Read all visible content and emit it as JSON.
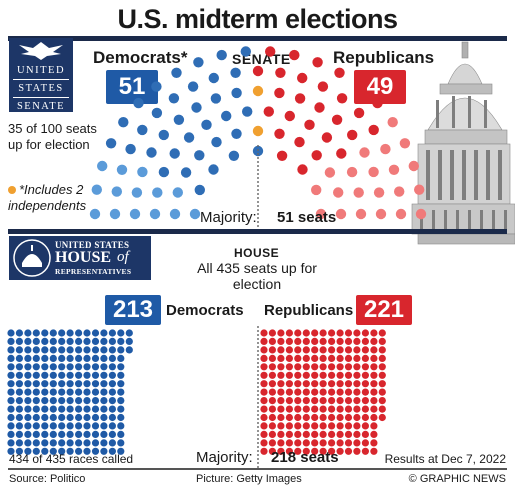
{
  "title": "U.S. midterm elections",
  "senate": {
    "logo_lines": [
      "UNITED",
      "STATES",
      "SENATE"
    ],
    "heading": "SENATE",
    "dem_label": "Democrats*",
    "rep_label": "Republicans",
    "up_for_election": "35 of 100 seats up for election",
    "footnote": "*Includes 2 independents",
    "majority_label": "Majority:",
    "majority_value": "51 seats",
    "colors": {
      "democrat": "#2f6db5",
      "democrat_up": "#5b9bd9",
      "independent": "#f0a030",
      "republican": "#d8262d",
      "republican_up": "#f07a7a"
    }
  },
  "house": {
    "logo_line1": "UNITED STATES",
    "logo_line2": "HOUSE",
    "logo_line3": "of",
    "logo_line4": "REPRESENTATIVES",
    "heading": "HOUSE",
    "subheading": "All 435 seats up for election",
    "dem_label": "Democrats",
    "rep_label": "Republicans",
    "races_called": "434 of 435 races called",
    "majority_label": "Majority:",
    "majority_value": "218 seats",
    "results_date": "Results at Dec 7, 2022",
    "colors": {
      "democrat": "#1f5aa6",
      "republican": "#d8262d"
    }
  },
  "footer": {
    "source": "Source: Politico",
    "picture": "Picture: Getty Images",
    "credit": "© GRAPHIC NEWS"
  },
  "chart_data": [
    {
      "type": "parliament",
      "chamber": "Senate",
      "total_seats": 100,
      "majority": 51,
      "series": [
        {
          "name": "Democrats*",
          "value": 51,
          "includes_independents": 2,
          "up_for_election": 14
        },
        {
          "name": "Republicans",
          "value": 49,
          "up_for_election": 21
        }
      ],
      "up_for_election": 35
    },
    {
      "type": "waffle",
      "chamber": "House",
      "total_seats": 435,
      "majority": 218,
      "races_called": 434,
      "series": [
        {
          "name": "Democrats",
          "value": 213
        },
        {
          "name": "Republicans",
          "value": 221
        }
      ]
    }
  ]
}
